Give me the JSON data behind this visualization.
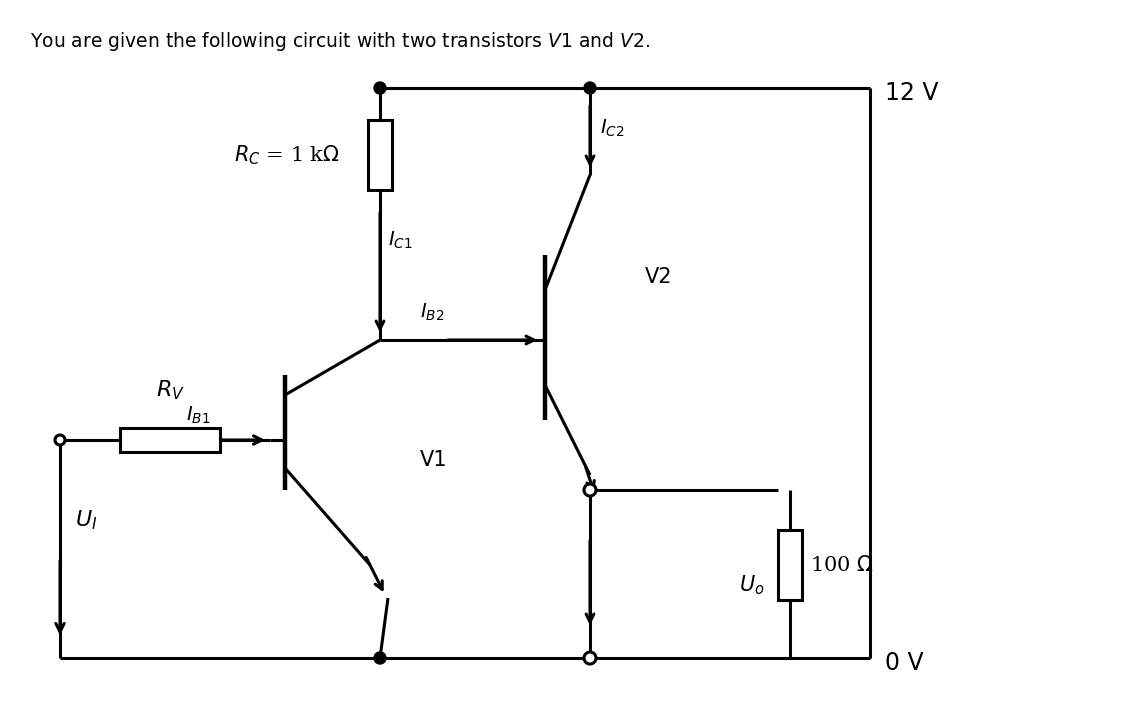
{
  "background_color": "#ffffff",
  "line_color": "#000000",
  "text_color": "#000000",
  "title": "You are given the following circuit with two transistors $\\mathit{V1}$ and $\\mathit{V2}$.",
  "rc_label": "$R_C$ = 1 k$\\Omega$",
  "rv_label": "$R_V$",
  "label_12v": "12 V",
  "label_0v": "0 V",
  "label_100ohm": "100 $\\Omega$",
  "label_uo": "$U_o$",
  "label_ui": "$U_I$",
  "label_ib1": "$I_{B1}$",
  "label_ib2": "$I_{B2}$",
  "label_ic1": "$I_{C1}$",
  "label_ic2": "$I_{C2}$",
  "label_v1": "V1",
  "label_v2": "V2"
}
